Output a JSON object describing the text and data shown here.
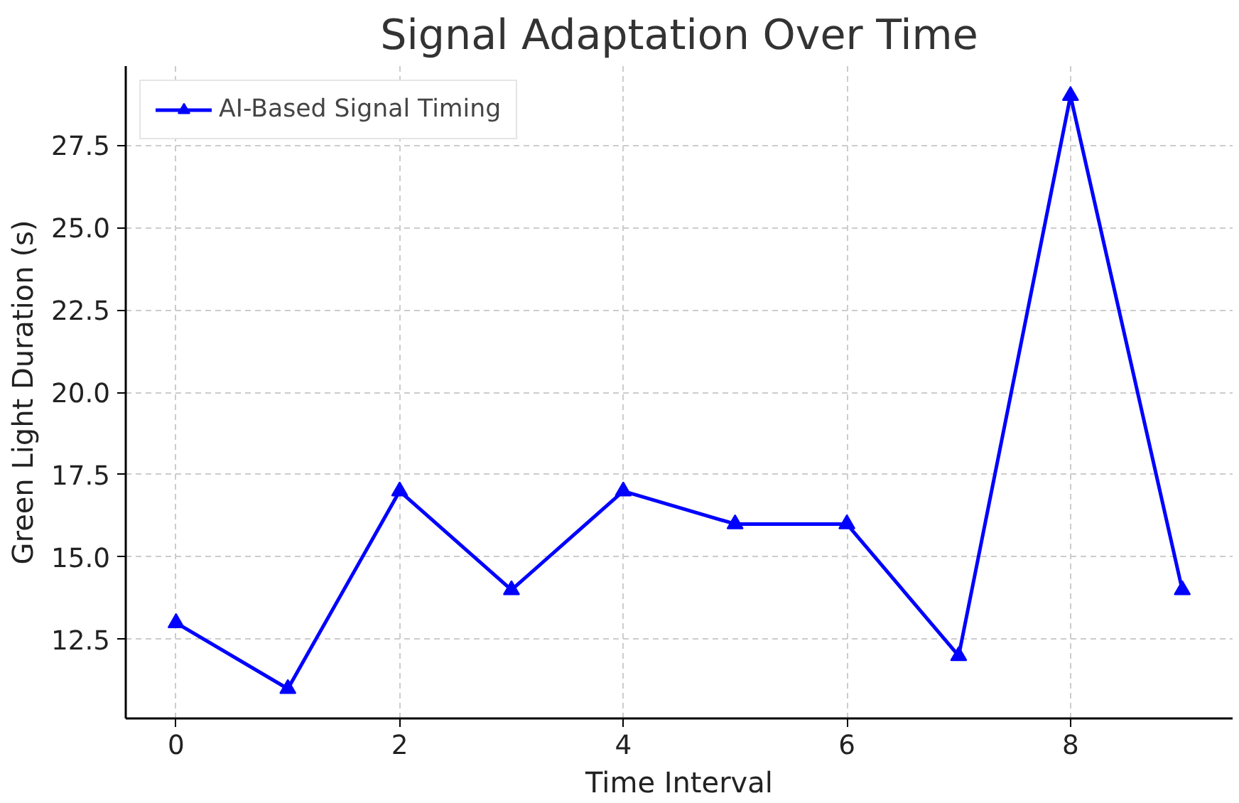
{
  "chart_data": {
    "type": "line",
    "title": "Signal Adaptation Over Time",
    "xlabel": "Time Interval",
    "ylabel": "Green Light Duration (s)",
    "x": [
      0,
      1,
      2,
      3,
      4,
      5,
      6,
      7,
      8,
      9
    ],
    "series": [
      {
        "name": "AI-Based Signal Timing",
        "color": "#0000ff",
        "values": [
          13,
          11,
          17,
          14,
          17,
          16,
          16,
          12,
          29,
          14
        ]
      }
    ],
    "xlim": [
      -0.45,
      9.45
    ],
    "ylim": [
      10.1,
      29.9
    ],
    "xticks": [
      0,
      2,
      4,
      6,
      8
    ],
    "yticks": [
      12.5,
      {
        "value": 15,
        "label": "15.0"
      },
      17.5,
      {
        "value": 20,
        "label": "20.0"
      },
      22.5,
      {
        "value": 25,
        "label": "25.0"
      },
      27.5
    ],
    "grid": true,
    "legend": "top left",
    "marker": "triangle",
    "line_style": "solid"
  }
}
